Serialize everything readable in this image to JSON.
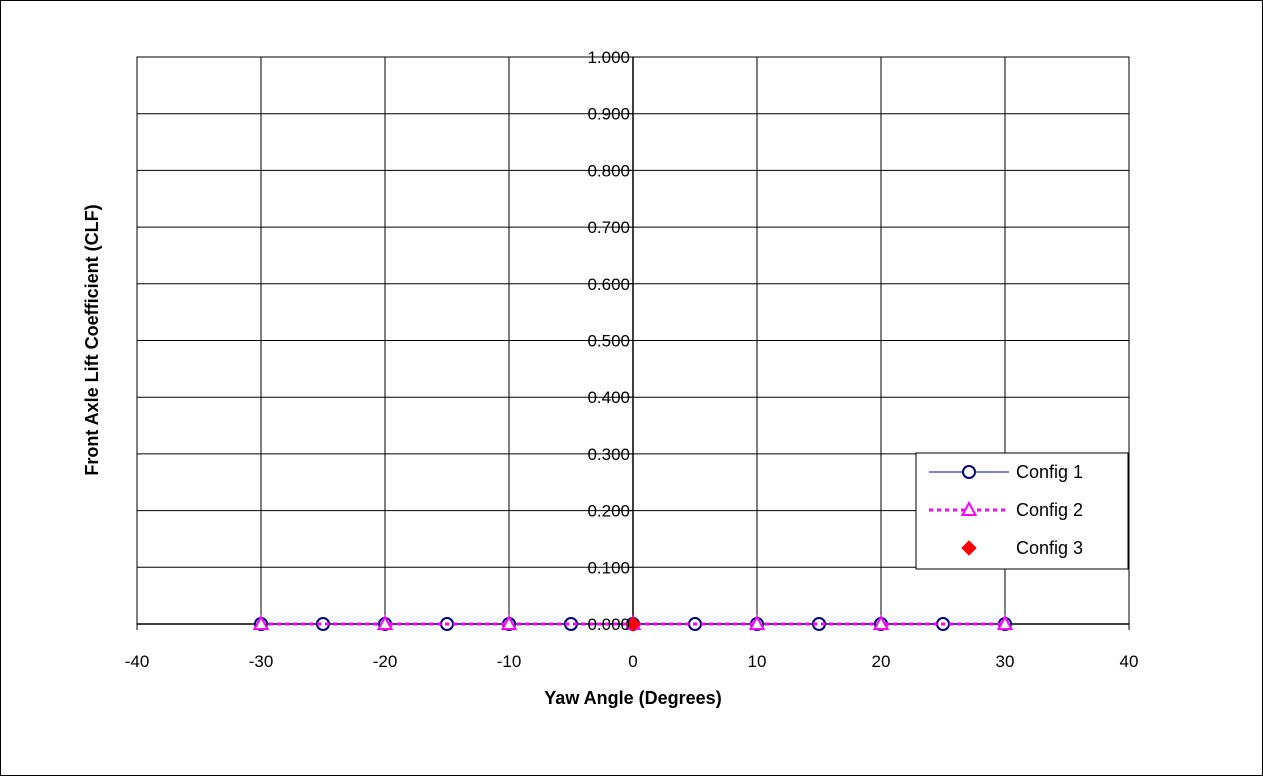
{
  "chart_data": {
    "type": "scatter",
    "title": "",
    "xlabel": "Yaw  Angle (Degrees)",
    "ylabel": "Front Axle Lift Coefficient (CLF)",
    "xlim": [
      -40,
      40
    ],
    "ylim": [
      0,
      1
    ],
    "x_ticks": [
      "-40",
      "-30",
      "-20",
      "-10",
      "0",
      "10",
      "20",
      "30",
      "40"
    ],
    "y_ticks": [
      "0.000",
      "0.100",
      "0.200",
      "0.300",
      "0.400",
      "0.500",
      "0.600",
      "0.700",
      "0.800",
      "0.900",
      "1.000"
    ],
    "grid": true,
    "legend_position": "right",
    "series": [
      {
        "name": "Config 1",
        "color": "#000080",
        "marker": "circle",
        "line": "solid",
        "x": [
          -30,
          -25,
          -20,
          -15,
          -10,
          -5,
          0,
          5,
          10,
          15,
          20,
          25,
          30
        ],
        "y": [
          0,
          0,
          0,
          0,
          0,
          0,
          0,
          0,
          0,
          0,
          0,
          0,
          0
        ]
      },
      {
        "name": "Config 2",
        "color": "#ff00ff",
        "marker": "triangle",
        "line": "dotted",
        "x": [
          -30,
          -20,
          -10,
          0,
          10,
          20,
          30
        ],
        "y": [
          0,
          0,
          0,
          0,
          0,
          0,
          0
        ]
      },
      {
        "name": "Config 3",
        "color": "#ff0000",
        "marker": "diamond",
        "line": "none",
        "x": [
          0
        ],
        "y": [
          0
        ]
      }
    ]
  }
}
